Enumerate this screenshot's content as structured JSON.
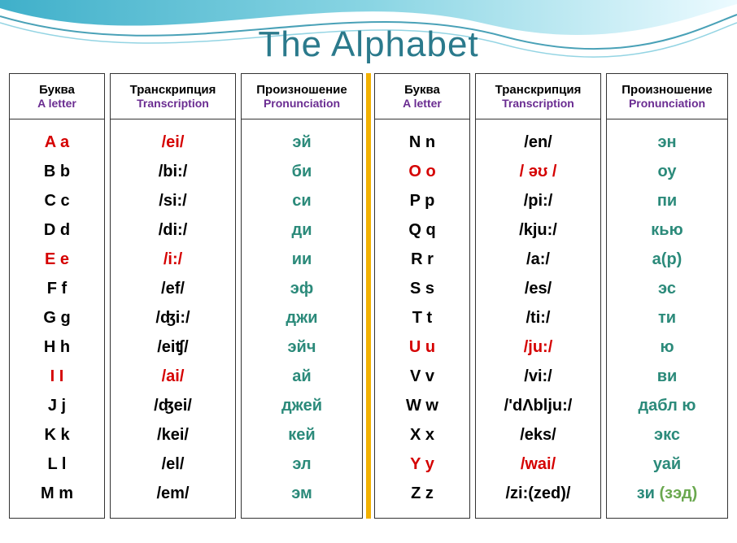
{
  "title": "The Alphabet",
  "headers": {
    "letter_ru": "Буква",
    "letter_en": "A letter",
    "trans_ru": "Транскрипция",
    "trans_en": "Transcription",
    "pron_ru": "Произношение",
    "pron_en": "Pronunciation"
  },
  "colors": {
    "vowel": "#d50000",
    "consonant": "#000000",
    "trans_vowel": "#d50000",
    "trans_consonant": "#000000",
    "pron": "#2b8a7a",
    "pron_alt": "#6aa84f",
    "title": "#2b7a8c",
    "header_en": "#6a2c91"
  },
  "left": [
    {
      "letter": "A a",
      "trans": "/ei/",
      "pron": "эй",
      "vowel": true
    },
    {
      "letter": "B b",
      "trans": "/bi:/",
      "pron": "би",
      "vowel": false
    },
    {
      "letter": "C c",
      "trans": "/si:/",
      "pron": "си",
      "vowel": false
    },
    {
      "letter": "D d",
      "trans": "/di:/",
      "pron": "ди",
      "vowel": false
    },
    {
      "letter": "E e",
      "trans": "/i:/",
      "pron": "ии",
      "vowel": true
    },
    {
      "letter": "F f",
      "trans": "/ef/",
      "pron": "эф",
      "vowel": false
    },
    {
      "letter": "G g",
      "trans": "/ʤi:/",
      "pron": "джи",
      "vowel": false
    },
    {
      "letter": "H h",
      "trans": "/eiʧ/",
      "pron": "эйч",
      "vowel": false
    },
    {
      "letter": "I I",
      "trans": "/ai/",
      "pron": "ай",
      "vowel": true
    },
    {
      "letter": "J j",
      "trans": "/ʤei/",
      "pron": "джей",
      "vowel": false
    },
    {
      "letter": "K k",
      "trans": "/kei/",
      "pron": "кей",
      "vowel": false
    },
    {
      "letter": "L l",
      "trans": "/el/",
      "pron": "эл",
      "vowel": false
    },
    {
      "letter": "M m",
      "trans": "/em/",
      "pron": "эм",
      "vowel": false
    }
  ],
  "right": [
    {
      "letter": "N n",
      "trans": "/en/",
      "pron": "эн",
      "vowel": false
    },
    {
      "letter": "O o",
      "trans": "/ əʊ /",
      "pron": "оу",
      "vowel": true
    },
    {
      "letter": "P p",
      "trans": "/pi:/",
      "pron": "пи",
      "vowel": false
    },
    {
      "letter": "Q q",
      "trans": "/kju:/",
      "pron": "кью",
      "vowel": false
    },
    {
      "letter": "R r",
      "trans": "/a:/",
      "pron": "а(р)",
      "vowel": false
    },
    {
      "letter": "S s",
      "trans": "/es/",
      "pron": "эс",
      "vowel": false
    },
    {
      "letter": "T t",
      "trans": "/ti:/",
      "pron": "ти",
      "vowel": false
    },
    {
      "letter": "U u",
      "trans": "/ju:/",
      "pron": "ю",
      "vowel": true
    },
    {
      "letter": "V v",
      "trans": "/vi:/",
      "pron": "ви",
      "vowel": false
    },
    {
      "letter": "W w",
      "trans": "/'dΛblju:/",
      "pron": "дабл ю",
      "vowel": false
    },
    {
      "letter": "X x",
      "trans": "/eks/",
      "pron": "экс",
      "vowel": false
    },
    {
      "letter": "Y y",
      "trans": "/wai/",
      "pron": "уай",
      "vowel": true
    },
    {
      "letter": "Z z",
      "trans": "/zi:(zed)/",
      "pron": "зи ",
      "pron_alt": "(зэд)",
      "vowel": false
    }
  ]
}
